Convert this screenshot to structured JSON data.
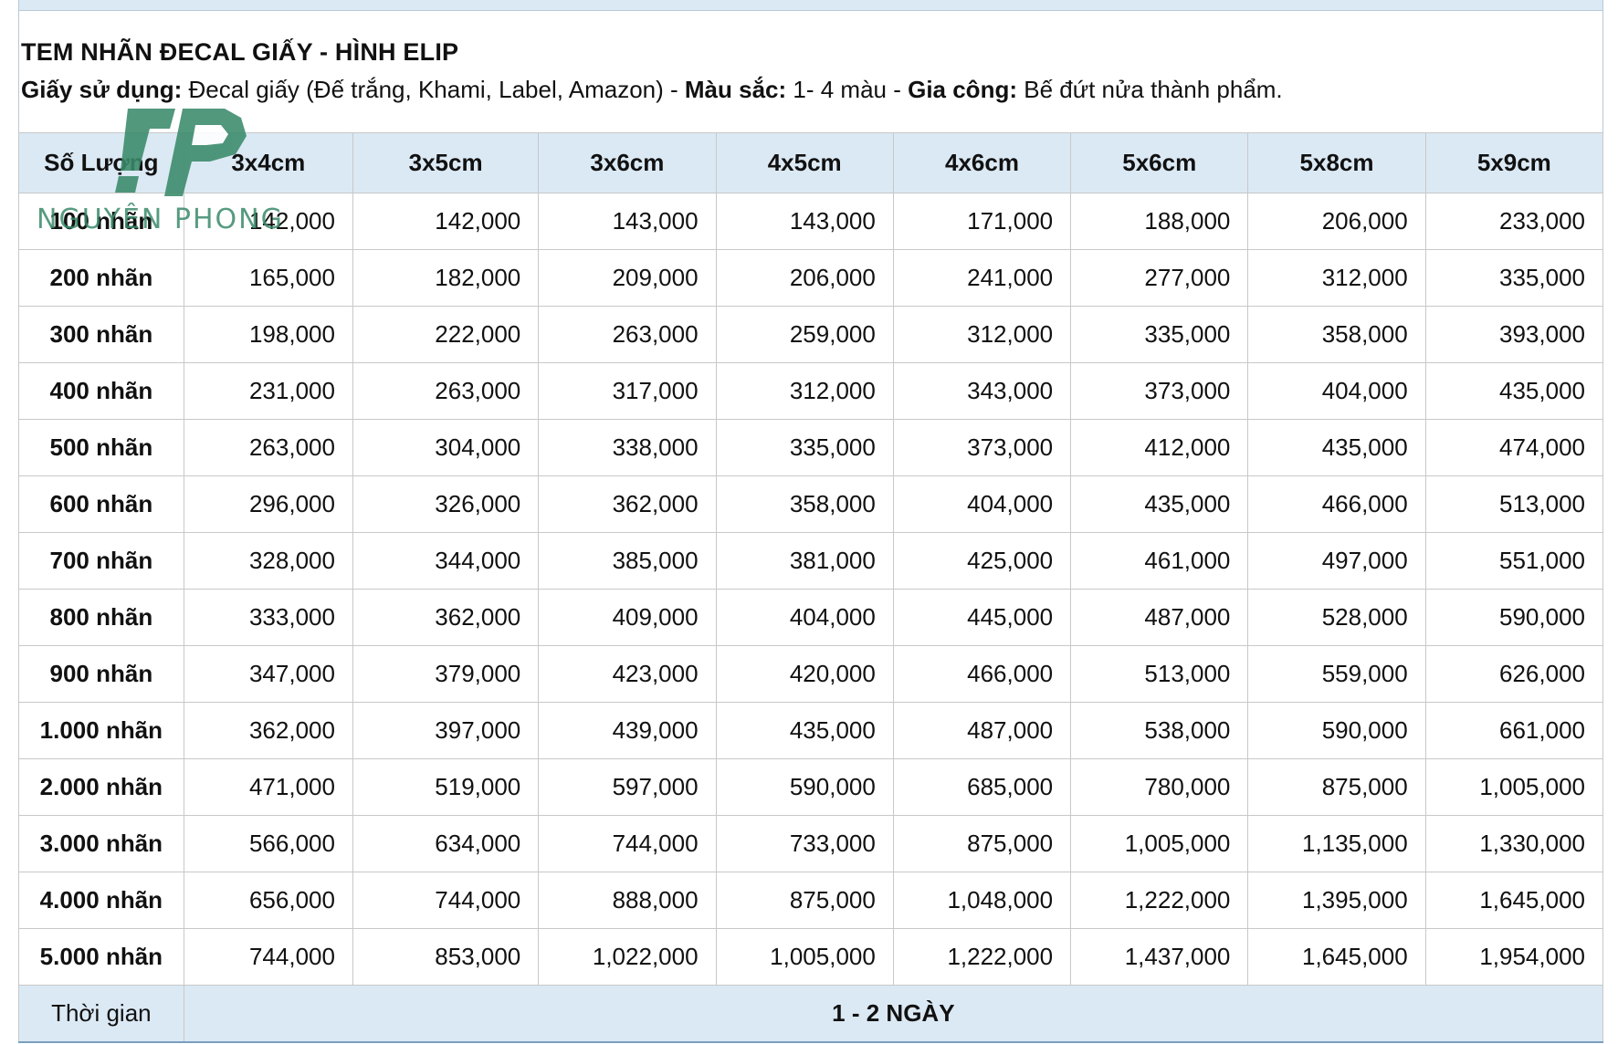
{
  "heading": "TEM NHÃN ĐECAL GIẤY - HÌNH ELIP",
  "spec": {
    "paper_label": "Giấy sử dụng:",
    "paper_value": " Đecal giấy (Đế trắng, Khami, Label, Amazon) - ",
    "color_label": "Màu sắc:",
    "color_value": "  1- 4 màu - ",
    "finish_label": "Gia công:",
    "finish_value": " Bế đứt nửa thành phẩm."
  },
  "logo": {
    "text": "NGUYÊN PHONG",
    "color": "#3a8a6a"
  },
  "table": {
    "headers": [
      "Số Lượng",
      "3x4cm",
      "3x5cm",
      "3x6cm",
      "4x5cm",
      "4x6cm",
      "5x6cm",
      "5x8cm",
      "5x9cm"
    ],
    "rows": [
      {
        "qty": "100 nhãn",
        "prices": [
          "142,000",
          "142,000",
          "143,000",
          "143,000",
          "171,000",
          "188,000",
          "206,000",
          "233,000"
        ]
      },
      {
        "qty": "200 nhãn",
        "prices": [
          "165,000",
          "182,000",
          "209,000",
          "206,000",
          "241,000",
          "277,000",
          "312,000",
          "335,000"
        ]
      },
      {
        "qty": "300 nhãn",
        "prices": [
          "198,000",
          "222,000",
          "263,000",
          "259,000",
          "312,000",
          "335,000",
          "358,000",
          "393,000"
        ]
      },
      {
        "qty": "400 nhãn",
        "prices": [
          "231,000",
          "263,000",
          "317,000",
          "312,000",
          "343,000",
          "373,000",
          "404,000",
          "435,000"
        ]
      },
      {
        "qty": "500 nhãn",
        "prices": [
          "263,000",
          "304,000",
          "338,000",
          "335,000",
          "373,000",
          "412,000",
          "435,000",
          "474,000"
        ]
      },
      {
        "qty": "600 nhãn",
        "prices": [
          "296,000",
          "326,000",
          "362,000",
          "358,000",
          "404,000",
          "435,000",
          "466,000",
          "513,000"
        ]
      },
      {
        "qty": "700 nhãn",
        "prices": [
          "328,000",
          "344,000",
          "385,000",
          "381,000",
          "425,000",
          "461,000",
          "497,000",
          "551,000"
        ]
      },
      {
        "qty": "800 nhãn",
        "prices": [
          "333,000",
          "362,000",
          "409,000",
          "404,000",
          "445,000",
          "487,000",
          "528,000",
          "590,000"
        ]
      },
      {
        "qty": "900 nhãn",
        "prices": [
          "347,000",
          "379,000",
          "423,000",
          "420,000",
          "466,000",
          "513,000",
          "559,000",
          "626,000"
        ]
      },
      {
        "qty": "1.000 nhãn",
        "prices": [
          "362,000",
          "397,000",
          "439,000",
          "435,000",
          "487,000",
          "538,000",
          "590,000",
          "661,000"
        ]
      },
      {
        "qty": "2.000 nhãn",
        "prices": [
          "471,000",
          "519,000",
          "597,000",
          "590,000",
          "685,000",
          "780,000",
          "875,000",
          "1,005,000"
        ]
      },
      {
        "qty": "3.000 nhãn",
        "prices": [
          "566,000",
          "634,000",
          "744,000",
          "733,000",
          "875,000",
          "1,005,000",
          "1,135,000",
          "1,330,000"
        ]
      },
      {
        "qty": "4.000 nhãn",
        "prices": [
          "656,000",
          "744,000",
          "888,000",
          "875,000",
          "1,048,000",
          "1,222,000",
          "1,395,000",
          "1,645,000"
        ]
      },
      {
        "qty": "5.000 nhãn",
        "prices": [
          "744,000",
          "853,000",
          "1,022,000",
          "1,005,000",
          "1,222,000",
          "1,437,000",
          "1,645,000",
          "1,954,000"
        ]
      }
    ],
    "footer": {
      "label": "Thời gian",
      "value": "1 - 2 NGÀY"
    }
  },
  "colors": {
    "header_bg": "#dbe9f4",
    "border": "#c8c8c8"
  }
}
